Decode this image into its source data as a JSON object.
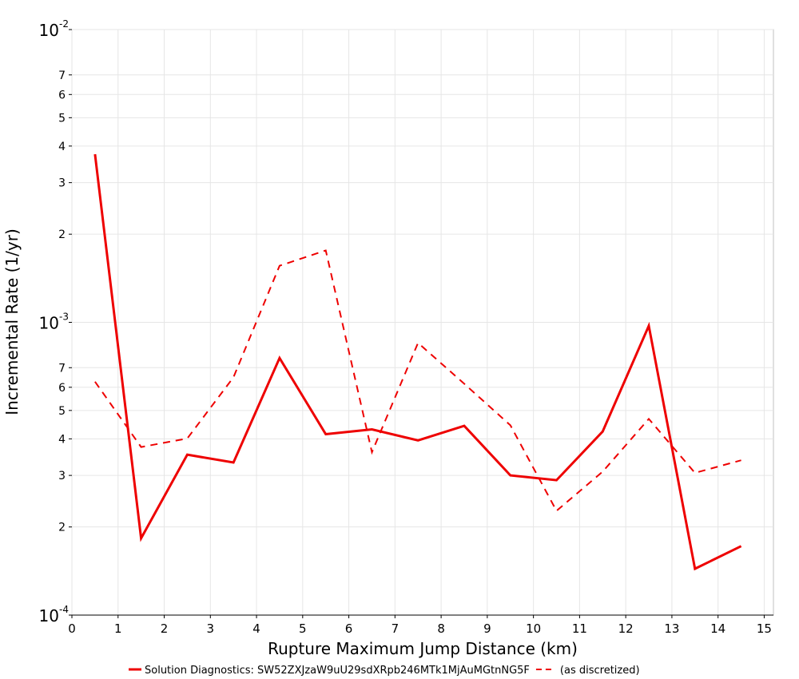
{
  "chart_data": {
    "type": "line",
    "title": "",
    "xlabel": "Rupture Maximum Jump Distance (km)",
    "ylabel": "Incremental Rate (1/yr)",
    "xlim": [
      0,
      15.2
    ],
    "ylim": [
      0.0001,
      0.01
    ],
    "yscale": "log",
    "grid": true,
    "legend_position": "bottom",
    "x_ticks": [
      "0",
      "1",
      "2",
      "3",
      "4",
      "5",
      "6",
      "7",
      "8",
      "9",
      "10",
      "11",
      "12",
      "13",
      "14",
      "15"
    ],
    "y_major_ticks": [
      {
        "value": 0.0001,
        "base": "10",
        "exp": "-4"
      },
      {
        "value": 0.001,
        "base": "10",
        "exp": "-3"
      },
      {
        "value": 0.01,
        "base": "10",
        "exp": "-2"
      }
    ],
    "y_minor_ticks": [
      {
        "value": 0.0002,
        "label": "2"
      },
      {
        "value": 0.0003,
        "label": "3"
      },
      {
        "value": 0.0004,
        "label": "4"
      },
      {
        "value": 0.0005,
        "label": "5"
      },
      {
        "value": 0.0006,
        "label": "6"
      },
      {
        "value": 0.0007,
        "label": "7"
      },
      {
        "value": 0.002,
        "label": "2"
      },
      {
        "value": 0.003,
        "label": "3"
      },
      {
        "value": 0.004,
        "label": "4"
      },
      {
        "value": 0.005,
        "label": "5"
      },
      {
        "value": 0.006,
        "label": "6"
      },
      {
        "value": 0.007,
        "label": "7"
      }
    ],
    "series": [
      {
        "name": "Solution Diagnostics: SW52ZXJzaW9uU29sdXRpb246MTk1MjAuMGtnNG5F",
        "color": "#ee0000",
        "dash": "solid",
        "x": [
          0.5,
          1.5,
          2.5,
          3.5,
          4.5,
          5.5,
          6.5,
          7.5,
          8.5,
          9.5,
          10.5,
          11.5,
          12.5,
          13.5,
          14.5
        ],
        "y": [
          0.00375,
          0.000183,
          0.000353,
          0.000332,
          0.000755,
          0.000415,
          0.000431,
          0.000395,
          0.000443,
          0.0003,
          0.000289,
          0.000424,
          0.000973,
          0.000144,
          0.000172
        ]
      },
      {
        "name": "(as discretized)",
        "color": "#ee0000",
        "dash": "dashed",
        "x": [
          0.5,
          1.5,
          2.5,
          3.5,
          4.5,
          5.5,
          6.5,
          7.5,
          8.5,
          9.5,
          10.5,
          11.5,
          12.5,
          13.5,
          14.5
        ],
        "y": [
          0.000627,
          0.000375,
          0.000401,
          0.000649,
          0.00156,
          0.00176,
          0.00036,
          0.000851,
          0.000617,
          0.000445,
          0.000227,
          0.000309,
          0.000468,
          0.000306,
          0.000338
        ]
      }
    ]
  }
}
